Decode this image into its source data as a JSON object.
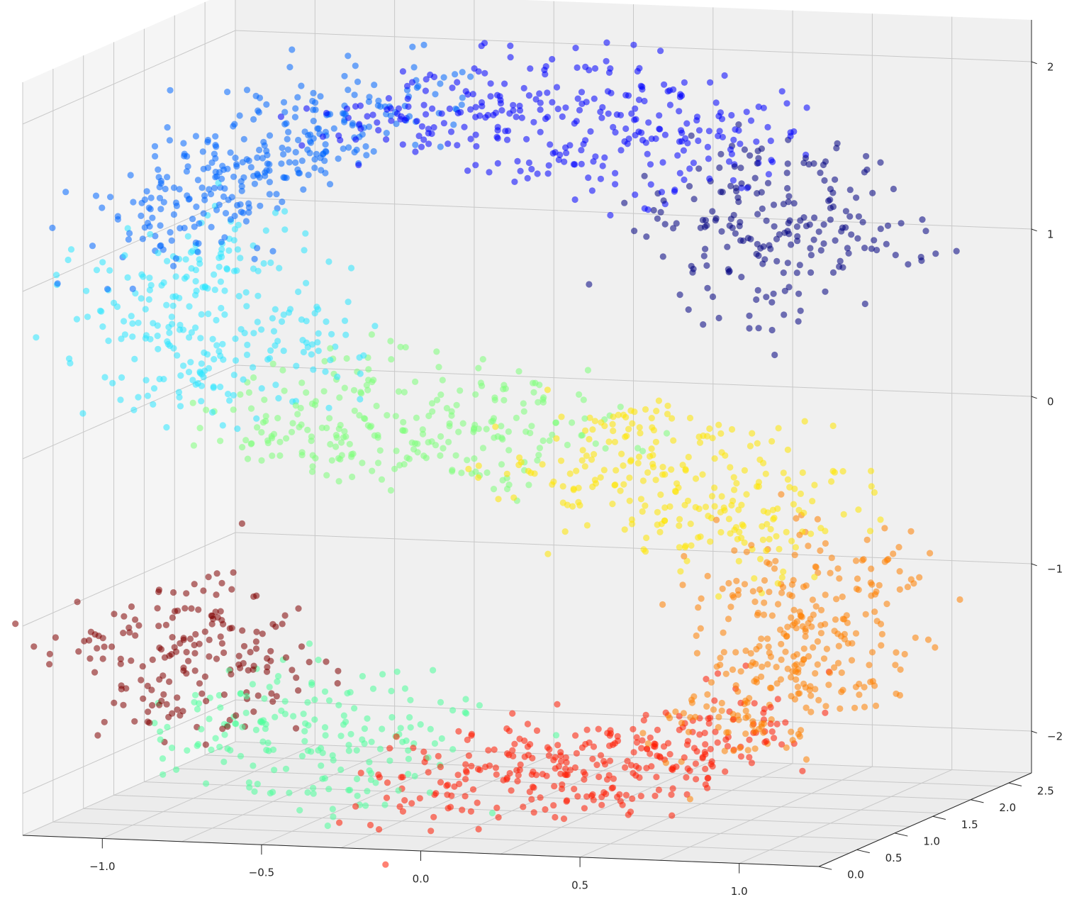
{
  "chart_data": {
    "type": "scatter",
    "projection": "3d",
    "title": "",
    "xlabel": "",
    "ylabel": "",
    "zlabel": "",
    "xlim": [
      -1.25,
      1.25
    ],
    "ylim": [
      0,
      2.8
    ],
    "zlim": [
      -2.25,
      2.25
    ],
    "xticks": [
      -1.0,
      -0.5,
      0.0,
      0.5,
      1.0
    ],
    "xtick_labels": [
      "−1.0",
      "−0.5",
      "0.0",
      "0.5",
      "1.0"
    ],
    "yticks": [
      0.0,
      0.5,
      1.0,
      1.5,
      2.0,
      2.5
    ],
    "ytick_labels": [
      "0.0",
      "0.5",
      "1.0",
      "1.5",
      "2.0",
      "2.5"
    ],
    "zticks": [
      -2,
      -1,
      0,
      1,
      2
    ],
    "ztick_labels": [
      "−2",
      "−1",
      "0",
      "1",
      "2"
    ],
    "grid": true,
    "legend": false,
    "colormap": "jet",
    "marker_alpha": 0.55,
    "dataset_shape": "S-curve",
    "series": [
      {
        "color": "#00007f",
        "t_range": [
          0.0,
          0.08
        ]
      },
      {
        "color": "#0000ff",
        "t_range": [
          0.08,
          0.2
        ]
      },
      {
        "color": "#0066ff",
        "t_range": [
          0.2,
          0.32
        ]
      },
      {
        "color": "#29e5ff",
        "t_range": [
          0.32,
          0.42
        ]
      },
      {
        "color": "#7dff7a",
        "t_range": [
          0.42,
          0.52
        ]
      },
      {
        "color": "#ffe600",
        "t_range": [
          0.52,
          0.62
        ]
      },
      {
        "color": "#ff7f00",
        "t_range": [
          0.62,
          0.74
        ]
      },
      {
        "color": "#ff1a00",
        "t_range": [
          0.74,
          0.86
        ]
      },
      {
        "color": "#4cff9a",
        "t_range": [
          0.86,
          0.93
        ]
      },
      {
        "color": "#800000",
        "t_range": [
          0.93,
          1.0
        ]
      }
    ]
  }
}
